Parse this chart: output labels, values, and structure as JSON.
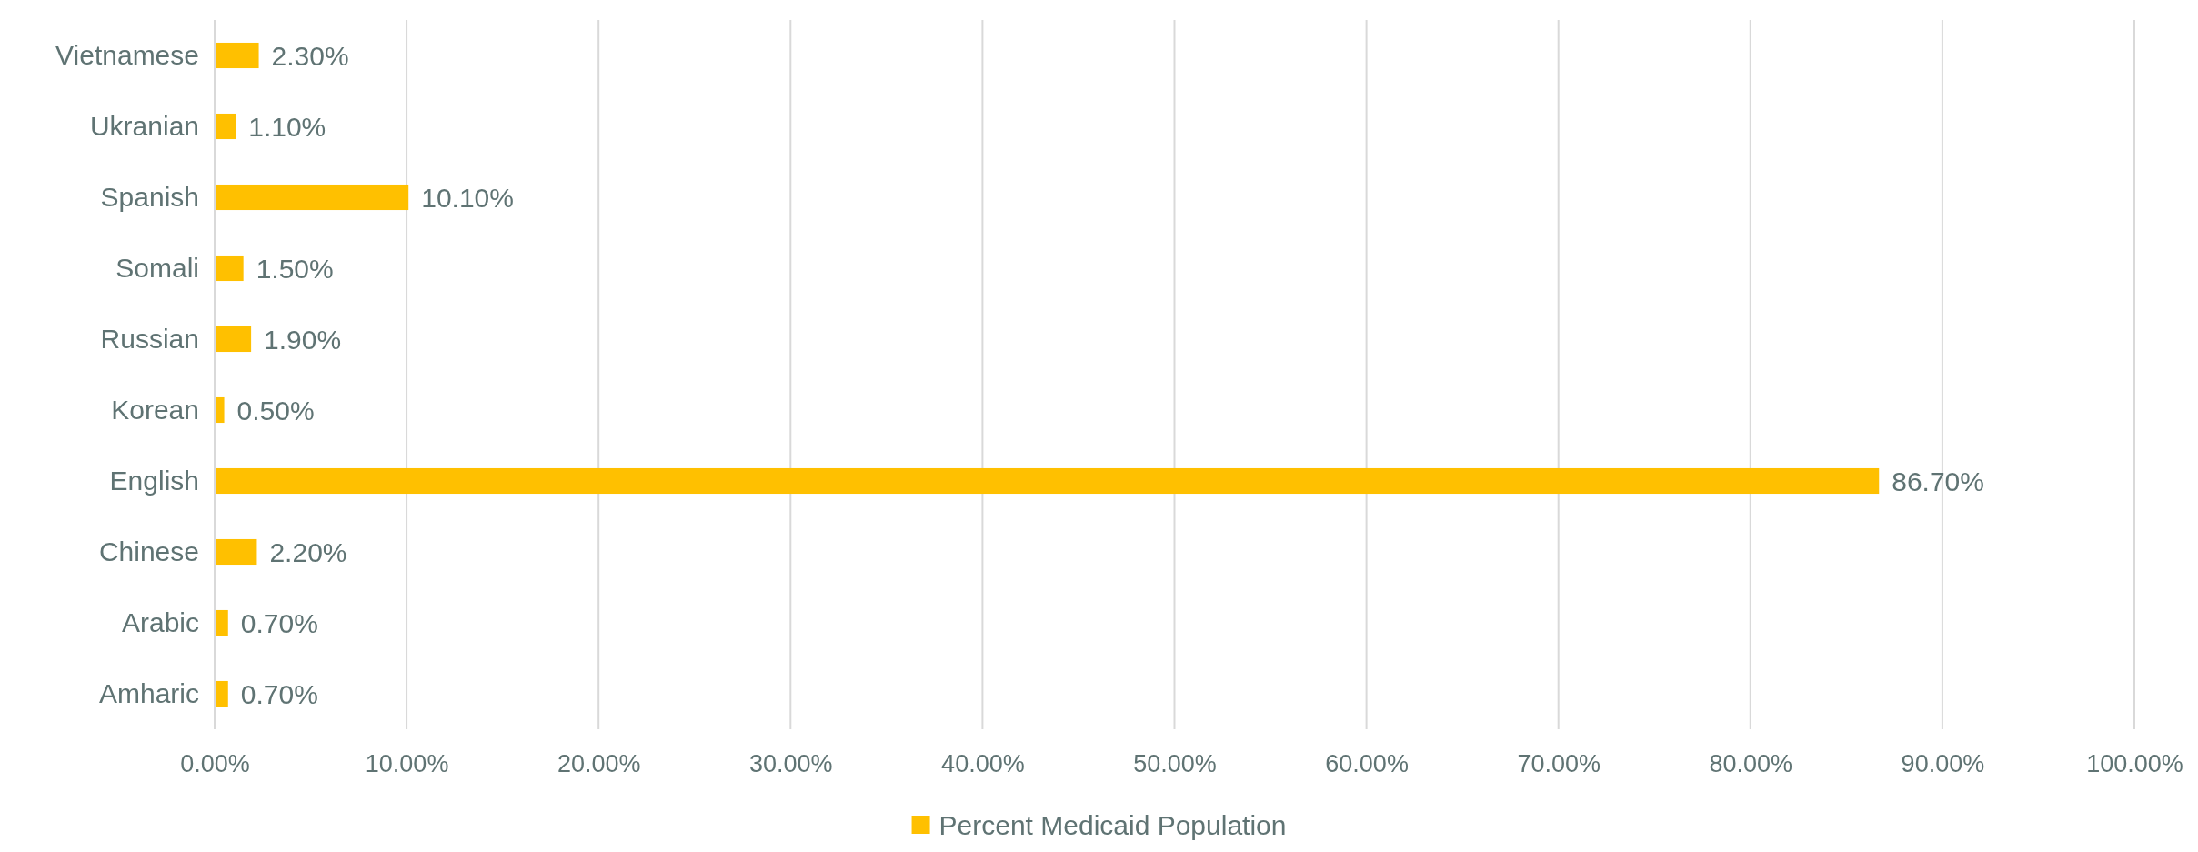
{
  "chart_data": {
    "type": "bar",
    "orientation": "horizontal",
    "categories": [
      "Vietnamese",
      "Ukranian",
      "Spanish",
      "Somali",
      "Russian",
      "Korean",
      "English",
      "Chinese",
      "Arabic",
      "Amharic"
    ],
    "series": [
      {
        "name": "Percent Medicaid Population",
        "color": "#ffc000",
        "values": [
          2.3,
          1.1,
          10.1,
          1.5,
          1.9,
          0.5,
          86.7,
          2.2,
          0.7,
          0.7
        ],
        "value_labels": [
          "2.30%",
          "1.10%",
          "10.10%",
          "1.50%",
          "1.90%",
          "0.50%",
          "86.70%",
          "2.20%",
          "0.70%",
          "0.70%"
        ]
      }
    ],
    "xlim": [
      0,
      100
    ],
    "xticks": [
      {
        "value": 0,
        "label": "0.00%"
      },
      {
        "value": 10,
        "label": "10.00%"
      },
      {
        "value": 20,
        "label": "20.00%"
      },
      {
        "value": 30,
        "label": "30.00%"
      },
      {
        "value": 40,
        "label": "40.00%"
      },
      {
        "value": 50,
        "label": "50.00%"
      },
      {
        "value": 60,
        "label": "60.00%"
      },
      {
        "value": 70,
        "label": "70.00%"
      },
      {
        "value": 80,
        "label": "80.00%"
      },
      {
        "value": 90,
        "label": "90.00%"
      },
      {
        "value": 100,
        "label": "100.00%"
      }
    ],
    "grid": "x",
    "legend": "bottom"
  }
}
